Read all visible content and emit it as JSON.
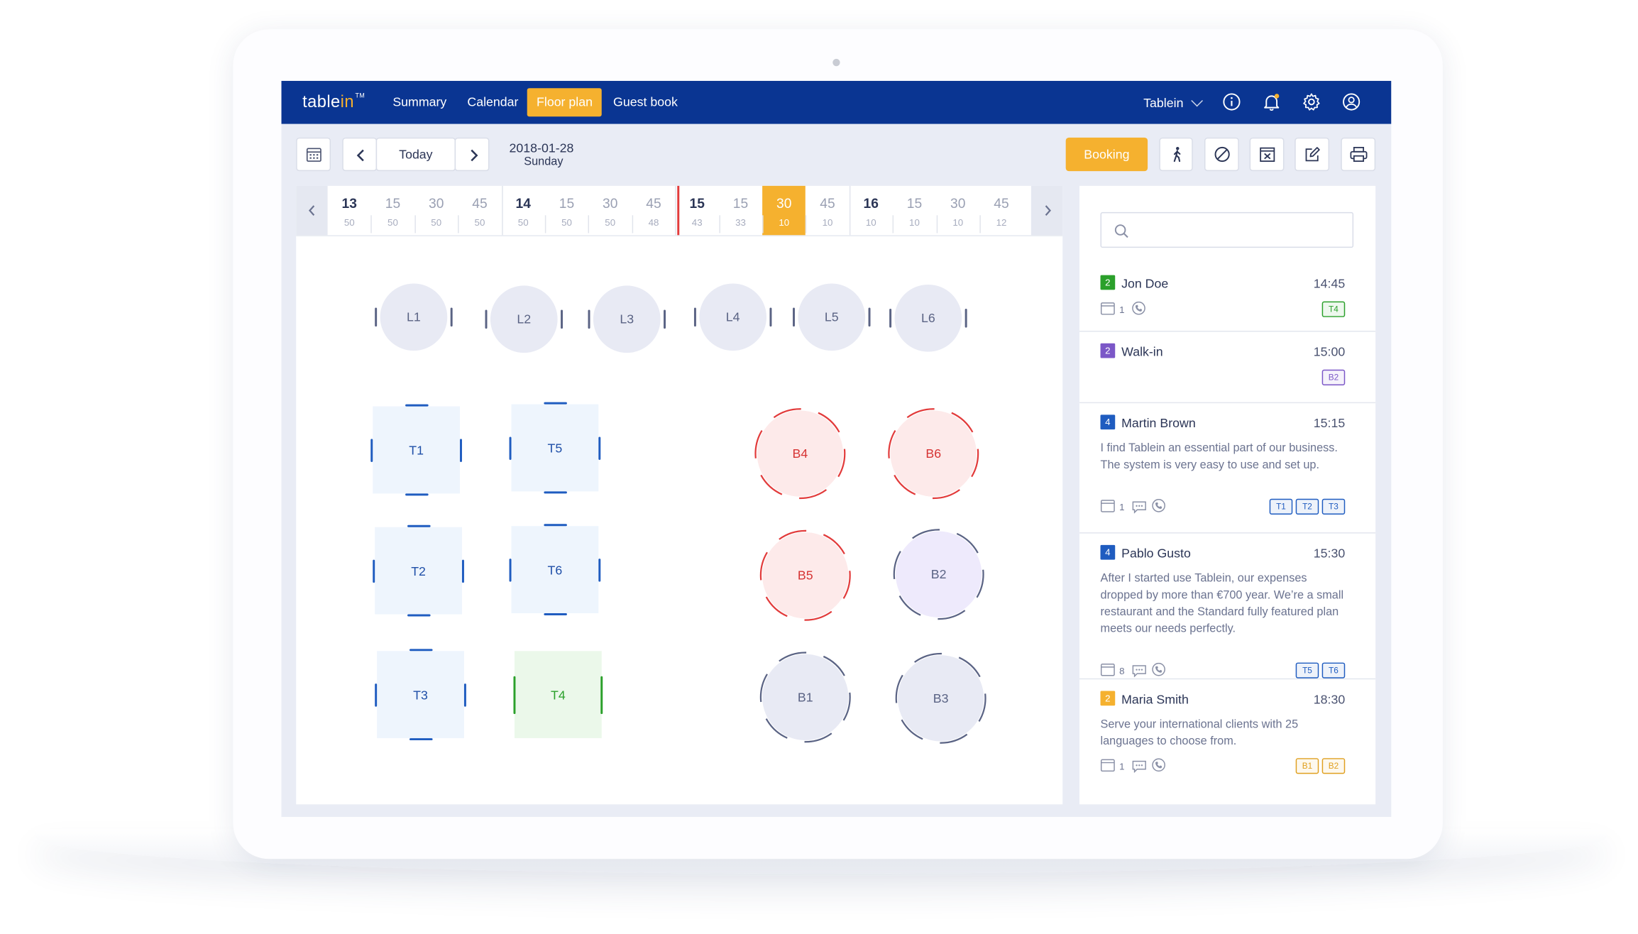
{
  "app": {
    "logo_main": "table",
    "logo_accent": "in",
    "logo_tm": "TM"
  },
  "nav": {
    "items": [
      "Summary",
      "Calendar",
      "Floor plan",
      "Guest book"
    ],
    "active": "Floor plan",
    "user": "Tablein",
    "icons": [
      "info-icon",
      "bell-icon",
      "gear-icon",
      "user-icon"
    ]
  },
  "toolbar": {
    "today_label": "Today",
    "date": "2018-01-28",
    "weekday": "Sunday",
    "booking_label": "Booking",
    "icons": [
      "calendar-icon",
      "prev-icon",
      "next-icon",
      "walk-in-icon",
      "block-icon",
      "cancel-table-icon",
      "edit-icon",
      "print-icon"
    ]
  },
  "timeline": {
    "cells": [
      {
        "label": "13",
        "count": "50",
        "hour": true
      },
      {
        "label": "15",
        "count": "50"
      },
      {
        "label": "30",
        "count": "50"
      },
      {
        "label": "45",
        "count": "50"
      },
      {
        "label": "14",
        "count": "50",
        "hour": true
      },
      {
        "label": "15",
        "count": "50"
      },
      {
        "label": "30",
        "count": "50"
      },
      {
        "label": "45",
        "count": "48"
      },
      {
        "label": "15",
        "count": "43",
        "hour": true
      },
      {
        "label": "15",
        "count": "33"
      },
      {
        "label": "30",
        "count": "10",
        "selected": true
      },
      {
        "label": "45",
        "count": "10"
      },
      {
        "label": "16",
        "count": "10",
        "hour": true
      },
      {
        "label": "15",
        "count": "10"
      },
      {
        "label": "30",
        "count": "10"
      },
      {
        "label": "45",
        "count": "12"
      }
    ]
  },
  "floor": {
    "lounge": [
      "L1",
      "L2",
      "L3",
      "L4",
      "L5",
      "L6"
    ],
    "tables_square": [
      {
        "id": "T1",
        "status": "booked"
      },
      {
        "id": "T5",
        "status": "booked"
      },
      {
        "id": "T2",
        "status": "booked"
      },
      {
        "id": "T6",
        "status": "booked"
      },
      {
        "id": "T3",
        "status": "booked"
      },
      {
        "id": "T4",
        "status": "seated"
      }
    ],
    "tables_round": [
      {
        "id": "B4",
        "status": "late"
      },
      {
        "id": "B6",
        "status": "late"
      },
      {
        "id": "B5",
        "status": "late"
      },
      {
        "id": "B2",
        "status": "walk-in"
      },
      {
        "id": "B1",
        "status": "free"
      },
      {
        "id": "B3",
        "status": "free"
      }
    ]
  },
  "colors": {
    "navy": "#0a3592",
    "accent": "#f5b12f",
    "booked_blue": "#1f5cc0",
    "seated_green": "#2ba02b",
    "late_red": "#e23b3b",
    "walkin_purple": "#7b57c7",
    "free_grey": "#5a6384"
  },
  "reservations": [
    {
      "count": "2",
      "count_color": "#2ba02b",
      "name": "Jon Doe",
      "time": "14:45",
      "note": "",
      "visits": "1",
      "has_comment": false,
      "tags": [
        "T4"
      ],
      "tag_color": "#2ba02b"
    },
    {
      "count": "2",
      "count_color": "#7b57c7",
      "name": "Walk-in",
      "time": "15:00",
      "note": "",
      "visits": "",
      "has_comment": false,
      "tags": [
        "B2"
      ],
      "tag_color": "#7b57c7"
    },
    {
      "count": "4",
      "count_color": "#1f5cc0",
      "name": "Martin Brown",
      "time": "15:15",
      "note": "I find Tablein an essential part of our business. The system is very easy to use and set up.",
      "visits": "1",
      "has_comment": true,
      "tags": [
        "T1",
        "T2",
        "T3"
      ],
      "tag_color": "#1f5cc0"
    },
    {
      "count": "4",
      "count_color": "#1f5cc0",
      "name": "Pablo Gusto",
      "time": "15:30",
      "note": "After I started use Tablein, our expenses dropped by more than €700 year. We’re a small restaurant and the Standard fully featured plan meets our needs perfectly.",
      "visits": "8",
      "has_comment": true,
      "tags": [
        "T5",
        "T6"
      ],
      "tag_color": "#1f5cc0"
    },
    {
      "count": "2",
      "count_color": "#f5b12f",
      "name": "Maria Smith",
      "time": "18:30",
      "note": "Serve your international clients with 25 languages to choose from.",
      "visits": "1",
      "has_comment": true,
      "tags": [
        "B1",
        "B2"
      ],
      "tag_color": "#e0a020"
    }
  ]
}
